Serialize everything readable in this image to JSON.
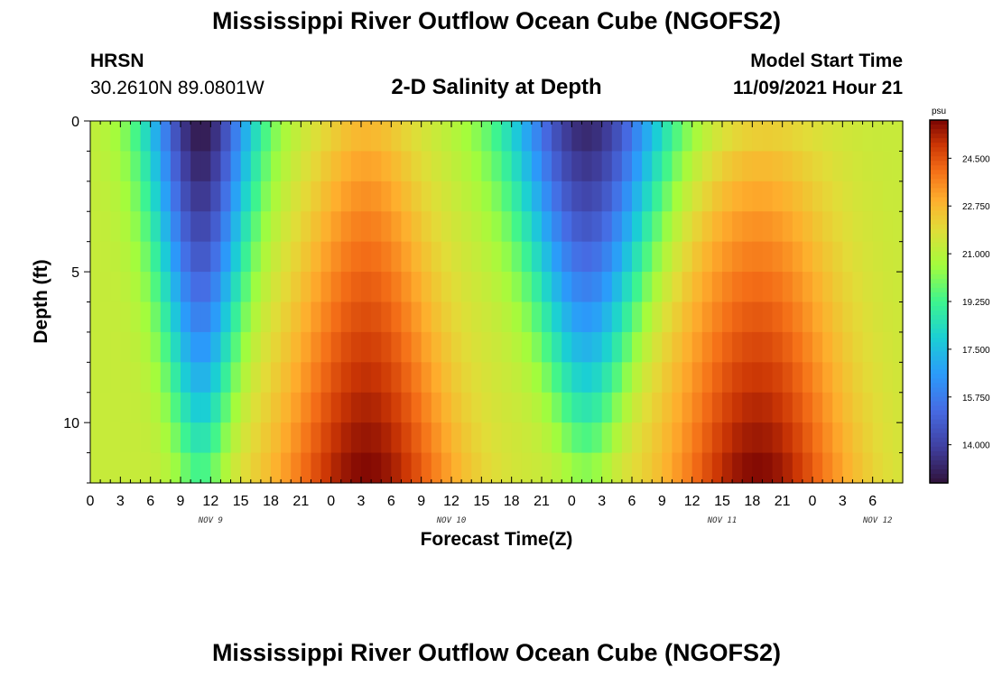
{
  "header": {
    "title": "Mississippi River Outflow Ocean Cube (NGOFS2)",
    "station": "HRSN",
    "coords": "30.2610N  89.0801W",
    "subtitle": "2-D Salinity at Depth",
    "model_label": "Model Start Time",
    "model_time": "11/09/2021 Hour 21"
  },
  "footer": {
    "title": "Mississippi River Outflow Ocean Cube (NGOFS2)"
  },
  "chart_data": {
    "type": "heatmap",
    "title": "2-D Salinity at Depth",
    "xlabel": "Forecast Time(Z)",
    "ylabel": "Depth (ft)",
    "colorbar_unit": "psu",
    "colorbar_ticks": [
      14.0,
      15.75,
      17.5,
      19.25,
      21.0,
      22.75,
      24.5
    ],
    "colorbar_tick_labels": [
      "14.000",
      "15.750",
      "17.500",
      "19.250",
      "21.000",
      "22.750",
      "24.500"
    ],
    "value_range": [
      12.6,
      25.9
    ],
    "x_range_hours": [
      0,
      81
    ],
    "x_tick_labels": [
      "0",
      "3",
      "6",
      "9",
      "12",
      "15",
      "18",
      "21",
      "0",
      "3",
      "6",
      "9",
      "12",
      "15",
      "18",
      "21",
      "0",
      "3",
      "6",
      "9",
      "12",
      "15",
      "18",
      "21",
      "0",
      "3",
      "6"
    ],
    "date_labels": [
      {
        "label": "NOV 9",
        "hour": 12
      },
      {
        "label": "NOV 10",
        "hour": 36
      },
      {
        "label": "NOV 11",
        "hour": 63
      },
      {
        "label": "NOV 12",
        "hour": 78.5
      }
    ],
    "y_range_ft": [
      0,
      12
    ],
    "y_tick_labels": [
      {
        "value": 0,
        "label": "0"
      },
      {
        "value": 5,
        "label": "5"
      },
      {
        "value": 10,
        "label": "10"
      }
    ],
    "fresh_events": [
      {
        "center_hour": 11,
        "surface_min_psu": 12.8,
        "bottom_psu": 19.5,
        "half_width_top_h": 5.5,
        "half_width_bottom_h": 2.5
      },
      {
        "center_hour": 49.5,
        "surface_min_psu": 13.2,
        "bottom_psu": 20.5,
        "half_width_top_h": 8,
        "half_width_bottom_h": 2.5
      }
    ],
    "salty_events": [
      {
        "center_hour": 27.5,
        "bottom_max_psu": 25.9,
        "surface_psu": 22.5,
        "half_width_bottom_h": 9,
        "half_width_top_h": 5
      },
      {
        "center_hour": 66.5,
        "bottom_max_psu": 25.9,
        "surface_psu": 22.0,
        "half_width_bottom_h": 9,
        "half_width_top_h": 7
      }
    ]
  }
}
